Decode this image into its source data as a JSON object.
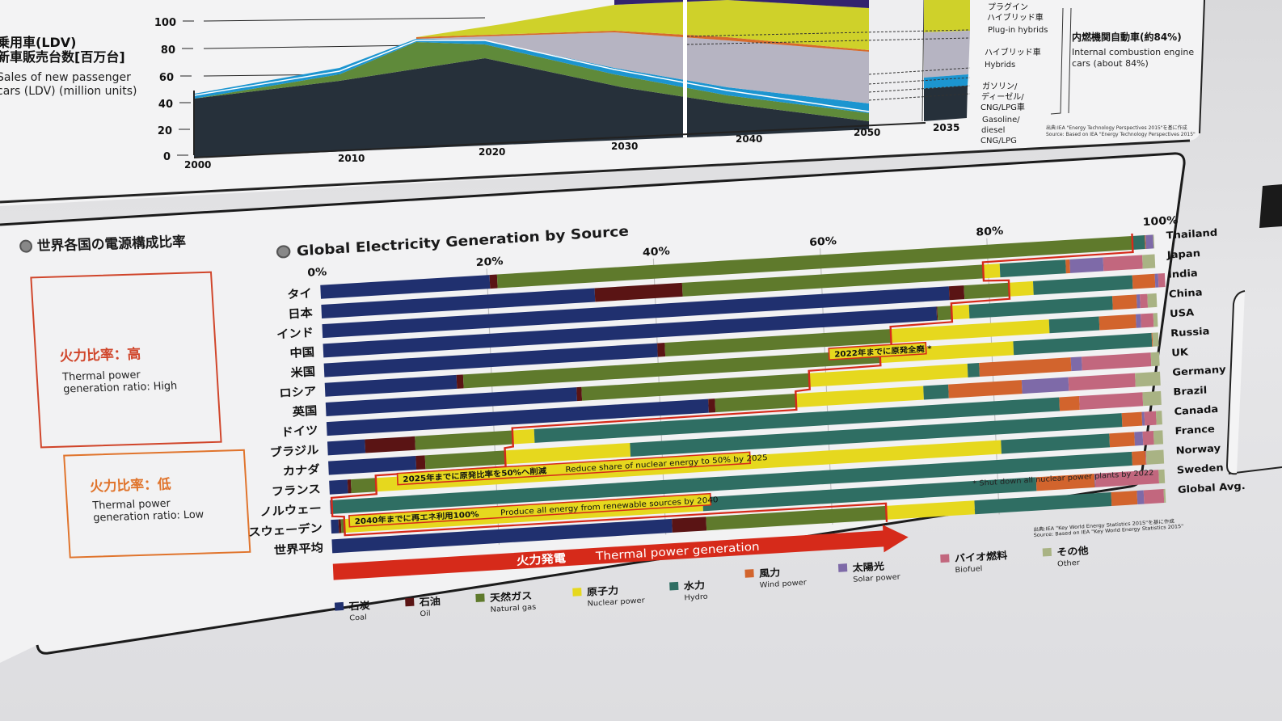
{
  "top_chart": {
    "ylabel_ja": [
      "乗用車(LDV)",
      "新車販売台数[百万台]"
    ],
    "ylabel_en": [
      "Sales of new passenger",
      "cars (LDV) (million units)"
    ],
    "y_ticks": [
      "100",
      "80",
      "60",
      "40",
      "20",
      "0"
    ],
    "x_ticks": [
      "2000",
      "2010",
      "2020",
      "2030",
      "2040",
      "2050",
      "2035"
    ],
    "legend": [
      {
        "ja": [
          "プラグイン",
          "ハイブリッド車"
        ],
        "en": [
          "Plug-in hybrids"
        ]
      },
      {
        "ja": [
          "ハイブリッド車"
        ],
        "en": [
          "Hybrids"
        ]
      },
      {
        "ja": [
          "ガソリン/",
          "ディーゼル/",
          "CNG/LPG車"
        ],
        "en": [
          "Gasoline/",
          "diesel",
          "CNG/LPG"
        ]
      }
    ],
    "ice_label_ja": "内燃機関自動車(約84%)",
    "ice_label_en": [
      "Internal combustion engine",
      "cars (about 84%)"
    ],
    "source": [
      "出典:IEA \"Energy Technology Perspectives 2015\"を基に作成",
      "Source: Based on IEA \"Energy Technology Perspectives 2015\""
    ]
  },
  "left_panel": {
    "title_ja": "世界各国の電源構成比率",
    "high_title": "火力比率：高",
    "high_en": [
      "Thermal power",
      "generation ratio: High"
    ],
    "low_title": "火力比率：低",
    "low_en": [
      "Thermal power",
      "generation ratio: Low"
    ]
  },
  "chart_data": {
    "type": "bar",
    "orientation": "horizontal-stacked-100",
    "title": "Global Electricity Generation by Source",
    "x_ticks": [
      "0%",
      "20%",
      "40%",
      "60%",
      "80%",
      "100%"
    ],
    "xlim": [
      0,
      100
    ],
    "categories_ja": [
      "タイ",
      "日本",
      "インド",
      "中国",
      "米国",
      "ロシア",
      "英国",
      "ドイツ",
      "ブラジル",
      "カナダ",
      "フランス",
      "ノルウェー",
      "スウェーデン",
      "世界平均"
    ],
    "categories_en": [
      "Thailand",
      "Japan",
      "India",
      "China",
      "USA",
      "Russia",
      "UK",
      "Germany",
      "Brazil",
      "Canada",
      "France",
      "Norway",
      "Sweden",
      "Global Avg."
    ],
    "series": [
      {
        "key": "coal",
        "ja": "石炭",
        "en": "Coal",
        "color": "#20306f",
        "values": [
          20.3,
          32.8,
          75.2,
          73.6,
          40.0,
          15.8,
          30.1,
          45.8,
          4.5,
          10.5,
          2.2,
          0.1,
          0.9,
          40.8
        ]
      },
      {
        "key": "oil",
        "ja": "石油",
        "en": "Oil",
        "color": "#5a1414",
        "values": [
          0.9,
          10.5,
          1.8,
          0.1,
          0.9,
          0.8,
          0.6,
          0.8,
          6.0,
          1.1,
          0.4,
          0.0,
          0.3,
          4.1
        ]
      },
      {
        "key": "gas",
        "ja": "天然ガス",
        "en": "Natural gas",
        "color": "#5f7a2c",
        "values": [
          76.2,
          36.1,
          5.4,
          1.7,
          27.1,
          50.0,
          27.3,
          9.7,
          11.7,
          9.6,
          3.0,
          0.1,
          0.4,
          21.6
        ]
      },
      {
        "key": "nuclear",
        "ja": "原子力",
        "en": "Nuclear power",
        "color": "#e6d81e",
        "values": [
          0.0,
          2.0,
          2.9,
          2.1,
          19.0,
          16.0,
          19.0,
          15.3,
          2.6,
          15.0,
          75.0,
          0.0,
          43.0,
          10.6
        ]
      },
      {
        "key": "hydro",
        "ja": "水力",
        "en": "Hydro",
        "color": "#2f6e63",
        "values": [
          1.5,
          7.9,
          11.9,
          17.2,
          6.0,
          16.6,
          1.4,
          3.0,
          63.0,
          59.0,
          13.0,
          96.0,
          40.0,
          16.4
        ]
      },
      {
        "key": "wind",
        "ja": "風力",
        "en": "Wind power",
        "color": "#d2642d",
        "values": [
          0.1,
          0.5,
          2.7,
          2.9,
          4.4,
          0.1,
          11.0,
          8.8,
          2.4,
          2.4,
          3.0,
          1.6,
          7.0,
          3.1
        ]
      },
      {
        "key": "solar",
        "ja": "太陽光",
        "en": "Solar power",
        "color": "#7e6aa8",
        "values": [
          0.9,
          4.0,
          0.4,
          0.4,
          0.6,
          0.0,
          1.3,
          5.6,
          0.0,
          0.3,
          1.0,
          0.0,
          0.1,
          0.8
        ]
      },
      {
        "key": "biofuel",
        "ja": "バイオ燃料",
        "en": "Biofuel",
        "color": "#c2677e",
        "values": [
          0.0,
          4.7,
          0.8,
          0.9,
          1.5,
          0.0,
          8.3,
          8.0,
          7.6,
          1.4,
          1.3,
          0.1,
          7.6,
          2.4
        ]
      },
      {
        "key": "other",
        "ja": "その他",
        "en": "Other",
        "color": "#a9b384",
        "values": [
          0.1,
          1.5,
          0.0,
          1.1,
          0.5,
          0.7,
          1.0,
          3.0,
          2.2,
          0.7,
          1.1,
          2.1,
          0.7,
          0.2
        ]
      }
    ],
    "annotations": [
      {
        "ja": "2022年までに原発全廃 *",
        "en": ""
      },
      {
        "ja": "2025年までに原発比率を50%へ削減",
        "en": "Reduce share of nuclear energy to 50% by 2025"
      },
      {
        "ja": "2040年までに再エネ利用100%",
        "en": "Produce all energy from renewable sources by 2040"
      }
    ],
    "footnote": "* Shut down all nuclear power plants by 2022",
    "thermal_arrow": {
      "ja": "火力発電",
      "en": "Thermal power generation"
    },
    "source": [
      "出典:IEA \"Key World Energy Statistics 2015\"を基に作成",
      "Source: Based on IEA \"Key World Energy Statistics 2015\""
    ]
  }
}
